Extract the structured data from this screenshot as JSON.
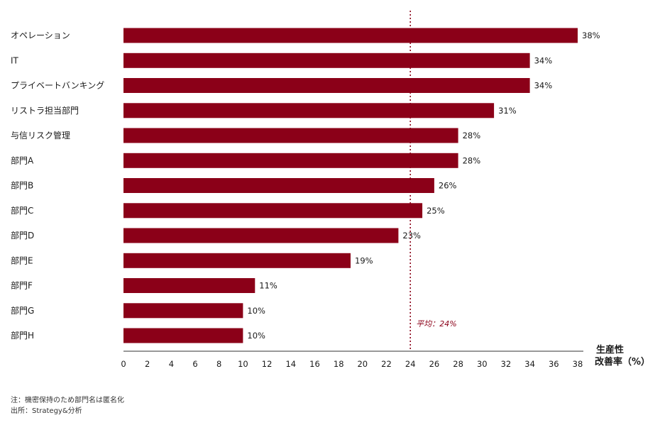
{
  "chart_data": {
    "type": "bar",
    "orientation": "horizontal",
    "categories": [
      "オペレーション",
      "IT",
      "プライベートバンキング",
      "リストラ担当部門",
      "与信リスク管理",
      "部門A",
      "部門B",
      "部門C",
      "部門D",
      "部門E",
      "部門F",
      "部門G",
      "部門H"
    ],
    "values": [
      38,
      34,
      34,
      31,
      28,
      28,
      26,
      25,
      23,
      19,
      11,
      10,
      10
    ],
    "value_labels": [
      "38%",
      "34%",
      "34%",
      "31%",
      "28%",
      "28%",
      "26%",
      "25%",
      "23%",
      "19%",
      "11%",
      "10%",
      "10%"
    ],
    "xlim": [
      0,
      38
    ],
    "xticks": [
      0,
      2,
      4,
      6,
      8,
      10,
      12,
      14,
      16,
      18,
      20,
      22,
      24,
      26,
      28,
      30,
      32,
      34,
      36,
      38
    ],
    "xlabel_line1": "生産性",
    "xlabel_line2": "改善率（%）",
    "average": {
      "value": 24,
      "label": "平均：24%"
    },
    "grid": false,
    "colors": {
      "bar": "#8b0018",
      "avg_line": "#8b0018",
      "axis": "#999999"
    }
  },
  "footnotes": {
    "note": "注：機密保持のため部門名は匿名化",
    "source": "出所：Strategy&分析"
  }
}
